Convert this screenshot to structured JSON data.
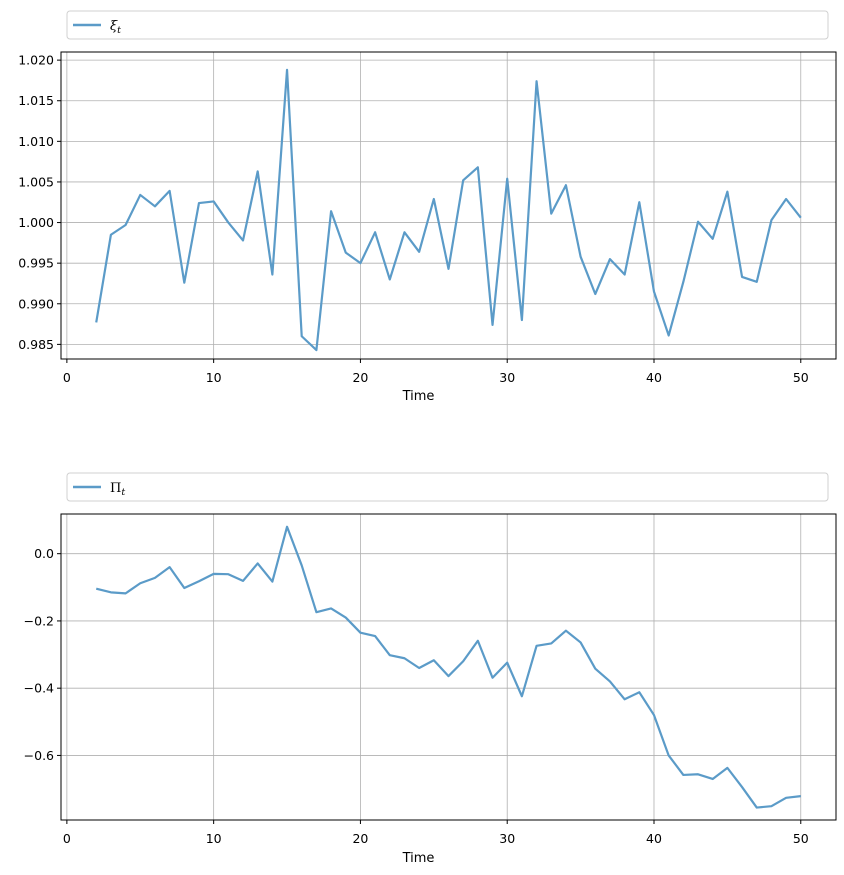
{
  "chart_data": [
    {
      "type": "line",
      "legend": {
        "placement": "top, outside above axes, full width",
        "entries": [
          "ξt"
        ]
      },
      "grid": true,
      "xlabel": "Time",
      "ylabel": "",
      "xlim": [
        -0.4,
        52.4
      ],
      "ylim": [
        0.9832,
        1.021
      ],
      "xticks": [
        0,
        10,
        20,
        30,
        40,
        50
      ],
      "xtick_labels": [
        "0",
        "10",
        "20",
        "30",
        "40",
        "50"
      ],
      "yticks": [
        0.985,
        0.99,
        0.995,
        1.0,
        1.005,
        1.01,
        1.015,
        1.02
      ],
      "ytick_labels": [
        "0.985",
        "0.990",
        "0.995",
        "1.000",
        "1.005",
        "1.010",
        "1.015",
        "1.020"
      ],
      "color": "#5b9bc8",
      "series": [
        {
          "name": "ξt",
          "x": [
            2,
            3,
            4,
            5,
            6,
            7,
            8,
            9,
            10,
            11,
            12,
            13,
            14,
            15,
            16,
            17,
            18,
            19,
            20,
            21,
            22,
            23,
            24,
            25,
            26,
            27,
            28,
            29,
            30,
            31,
            32,
            33,
            34,
            35,
            36,
            37,
            38,
            39,
            40,
            41,
            42,
            43,
            44,
            45,
            46,
            47,
            48,
            49,
            50
          ],
          "values": [
            0.9877,
            0.9985,
            0.9997,
            1.0034,
            1.002,
            1.0039,
            0.9926,
            1.0024,
            1.0026,
            1.0,
            0.9978,
            1.0063,
            0.9936,
            1.0188,
            0.986,
            0.9843,
            1.0014,
            0.9963,
            0.995,
            0.9988,
            0.993,
            0.9988,
            0.9964,
            1.0029,
            0.9943,
            1.0052,
            1.0068,
            0.9874,
            1.0054,
            0.988,
            1.0174,
            1.0011,
            1.0046,
            0.9958,
            0.9912,
            0.9955,
            0.9936,
            1.0025,
            0.9915,
            0.9861,
            0.9927,
            1.0001,
            0.998,
            1.0038,
            0.9933,
            0.9927,
            1.0003,
            1.0029,
            1.0006
          ]
        }
      ]
    },
    {
      "type": "line",
      "legend": {
        "placement": "top, outside above axes, full width",
        "entries": [
          "Πt"
        ]
      },
      "grid": true,
      "xlabel": "Time",
      "ylabel": "",
      "xlim": [
        -0.4,
        52.4
      ],
      "ylim": [
        -0.792,
        0.118
      ],
      "xticks": [
        0,
        10,
        20,
        30,
        40,
        50
      ],
      "xtick_labels": [
        "0",
        "10",
        "20",
        "30",
        "40",
        "50"
      ],
      "yticks": [
        -0.6,
        -0.4,
        -0.2,
        0.0
      ],
      "ytick_labels": [
        "−0.6",
        "−0.4",
        "−0.2",
        "0.0"
      ],
      "color": "#5b9bc8",
      "series": [
        {
          "name": "Πt",
          "x": [
            2,
            3,
            4,
            5,
            6,
            7,
            8,
            9,
            10,
            11,
            12,
            13,
            14,
            15,
            16,
            17,
            18,
            19,
            20,
            21,
            22,
            23,
            24,
            25,
            26,
            27,
            28,
            29,
            30,
            31,
            32,
            33,
            34,
            35,
            36,
            37,
            38,
            39,
            40,
            41,
            42,
            43,
            44,
            45,
            46,
            47,
            48,
            49,
            50
          ],
          "values": [
            -0.104,
            -0.115,
            -0.118,
            -0.088,
            -0.072,
            -0.04,
            -0.102,
            -0.082,
            -0.06,
            -0.061,
            -0.081,
            -0.029,
            -0.083,
            0.08,
            -0.035,
            -0.174,
            -0.163,
            -0.19,
            -0.235,
            -0.245,
            -0.302,
            -0.311,
            -0.34,
            -0.317,
            -0.364,
            -0.32,
            -0.259,
            -0.369,
            -0.324,
            -0.424,
            -0.274,
            -0.267,
            -0.229,
            -0.264,
            -0.342,
            -0.38,
            -0.433,
            -0.412,
            -0.48,
            -0.6,
            -0.658,
            -0.656,
            -0.67,
            -0.637,
            -0.694,
            -0.755,
            -0.751,
            -0.726,
            -0.721
          ]
        }
      ]
    }
  ]
}
